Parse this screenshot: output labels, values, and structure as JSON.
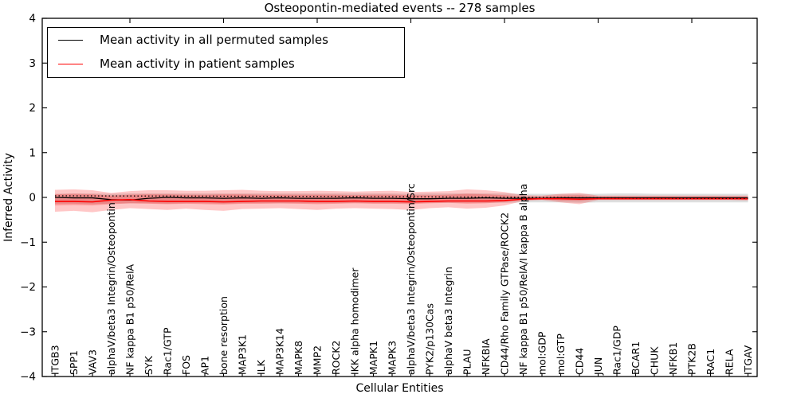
{
  "chart_data": {
    "type": "line",
    "title": "Osteopontin-mediated events -- 278 samples",
    "xlabel": "Cellular Entities",
    "ylabel": "Inferred Activity",
    "ylim": [
      -4,
      4
    ],
    "ytick_labels": [
      "4",
      "3",
      "2",
      "1",
      "0",
      "−1",
      "−2",
      "−3",
      "−4"
    ],
    "ytick_values": [
      4,
      3,
      2,
      1,
      0,
      -1,
      -2,
      -3,
      -4
    ],
    "grid": false,
    "categories": [
      "ITGB3",
      "SPP1",
      "VAV3",
      "alphaV/beta3 Integrin/Osteopontin",
      "NF kappa B1 p50/RelA",
      "SYK",
      "Rac1/GTP",
      "FOS",
      "AP1",
      "bone resorption",
      "MAP3K1",
      "ILK",
      "MAP3K14",
      "MAPK8",
      "MMP2",
      "ROCK2",
      "IKK alpha homodimer",
      "MAPK1",
      "MAPK3",
      "alphaV/beta3 Integrin/Osteopontin/Src",
      "PYK2/p130Cas",
      "alphaV beta3 Integrin",
      "PLAU",
      "NFKBIA",
      "CD44/Rho Family GTPase/ROCK2",
      "NF kappa B1 p50/RelA/I kappa B alpha",
      "mol:GDP",
      "mol:GTP",
      "CD44",
      "JUN",
      "Rac1/GDP",
      "BCAR1",
      "CHUK",
      "NFKB1",
      "PTK2B",
      "RAC1",
      "RELA",
      "ITGAV"
    ],
    "series": [
      {
        "name": "Mean activity in all permuted samples",
        "color": "#000000",
        "style": "solid",
        "width": 1.3,
        "values": [
          0.0,
          -0.01,
          -0.01,
          -0.05,
          -0.06,
          -0.02,
          0.0,
          -0.01,
          -0.01,
          -0.02,
          -0.01,
          -0.02,
          -0.01,
          -0.02,
          -0.02,
          -0.02,
          -0.01,
          -0.02,
          -0.02,
          -0.03,
          -0.03,
          -0.02,
          -0.02,
          -0.01,
          -0.02,
          -0.02,
          -0.02,
          -0.01,
          -0.01,
          -0.01,
          -0.01,
          -0.01,
          -0.01,
          -0.01,
          -0.01,
          -0.01,
          -0.01,
          -0.01
        ]
      },
      {
        "name": "Mean activity in patient samples",
        "color": "#ff0000",
        "style": "solid",
        "width": 1.6,
        "values": [
          -0.09,
          -0.09,
          -0.1,
          -0.06,
          -0.05,
          -0.08,
          -0.09,
          -0.09,
          -0.09,
          -0.1,
          -0.09,
          -0.08,
          -0.08,
          -0.08,
          -0.09,
          -0.09,
          -0.08,
          -0.09,
          -0.09,
          -0.1,
          -0.09,
          -0.08,
          -0.08,
          -0.08,
          -0.07,
          -0.04,
          -0.03,
          -0.03,
          -0.04,
          -0.03,
          -0.03,
          -0.03,
          -0.03,
          -0.03,
          -0.03,
          -0.03,
          -0.03,
          -0.03
        ]
      },
      {
        "name": "permuted-reference-dotted",
        "color": "#000000",
        "style": "dotted",
        "width": 1.3,
        "values": [
          0.035,
          0.035,
          0.034,
          0.033,
          0.032,
          0.031,
          0.03,
          0.029,
          0.028,
          0.027,
          0.026,
          0.025,
          0.024,
          0.023,
          0.022,
          0.021,
          0.02,
          0.018,
          0.016,
          0.014,
          0.012,
          0.01,
          0.008,
          0.006,
          0.004,
          0.002,
          0.0,
          -0.002,
          -0.005,
          -0.008,
          -0.01,
          -0.012,
          -0.014,
          -0.016,
          -0.018,
          -0.019,
          -0.02,
          -0.02
        ]
      }
    ],
    "bands": [
      {
        "name": "permuted-std-band",
        "color": "rgba(0,0,0,0.13)",
        "upper": [
          0.08,
          0.09,
          0.09,
          0.08,
          0.09,
          0.09,
          0.09,
          0.09,
          0.09,
          0.09,
          0.09,
          0.09,
          0.09,
          0.09,
          0.09,
          0.09,
          0.09,
          0.09,
          0.09,
          0.08,
          0.09,
          0.09,
          0.09,
          0.09,
          0.09,
          0.08,
          0.08,
          0.08,
          0.08,
          0.08,
          0.09,
          0.09,
          0.08,
          0.08,
          0.08,
          0.08,
          0.08,
          0.08
        ],
        "lower": [
          -0.14,
          -0.14,
          -0.15,
          -0.14,
          -0.13,
          -0.13,
          -0.14,
          -0.13,
          -0.13,
          -0.14,
          -0.13,
          -0.13,
          -0.13,
          -0.13,
          -0.13,
          -0.13,
          -0.12,
          -0.13,
          -0.13,
          -0.13,
          -0.12,
          -0.12,
          -0.12,
          -0.12,
          -0.12,
          -0.11,
          -0.11,
          -0.11,
          -0.12,
          -0.11,
          -0.11,
          -0.11,
          -0.11,
          -0.11,
          -0.11,
          -0.11,
          -0.11,
          -0.11
        ]
      },
      {
        "name": "patient-outer-band",
        "color": "rgba(255,0,0,0.22)",
        "upper": [
          0.17,
          0.18,
          0.16,
          0.1,
          0.14,
          0.16,
          0.16,
          0.15,
          0.15,
          0.16,
          0.17,
          0.15,
          0.14,
          0.14,
          0.15,
          0.14,
          0.13,
          0.14,
          0.15,
          0.12,
          0.13,
          0.14,
          0.18,
          0.16,
          0.12,
          0.05,
          0.04,
          0.08,
          0.1,
          0.04,
          0.04,
          0.04,
          0.04,
          0.04,
          0.04,
          0.04,
          0.04,
          0.04
        ],
        "lower": [
          -0.32,
          -0.3,
          -0.33,
          -0.28,
          -0.24,
          -0.26,
          -0.28,
          -0.25,
          -0.28,
          -0.3,
          -0.26,
          -0.25,
          -0.24,
          -0.26,
          -0.28,
          -0.25,
          -0.24,
          -0.25,
          -0.26,
          -0.28,
          -0.24,
          -0.22,
          -0.25,
          -0.23,
          -0.18,
          -0.08,
          -0.06,
          -0.11,
          -0.15,
          -0.06,
          -0.06,
          -0.06,
          -0.06,
          -0.06,
          -0.06,
          -0.06,
          -0.06,
          -0.07
        ]
      },
      {
        "name": "patient-inner-band",
        "color": "rgba(255,0,0,0.22)",
        "upper": [
          0.07,
          0.08,
          0.07,
          0.04,
          0.06,
          0.07,
          0.07,
          0.06,
          0.06,
          0.07,
          0.07,
          0.06,
          0.06,
          0.06,
          0.06,
          0.06,
          0.05,
          0.06,
          0.06,
          0.05,
          0.05,
          0.06,
          0.08,
          0.07,
          0.05,
          0.02,
          0.02,
          0.04,
          0.05,
          0.02,
          0.02,
          0.02,
          0.02,
          0.02,
          0.02,
          0.02,
          0.02,
          0.02
        ],
        "lower": [
          -0.18,
          -0.17,
          -0.18,
          -0.15,
          -0.13,
          -0.14,
          -0.15,
          -0.14,
          -0.15,
          -0.16,
          -0.14,
          -0.14,
          -0.13,
          -0.14,
          -0.15,
          -0.14,
          -0.13,
          -0.14,
          -0.14,
          -0.15,
          -0.13,
          -0.12,
          -0.14,
          -0.13,
          -0.1,
          -0.05,
          -0.04,
          -0.07,
          -0.08,
          -0.04,
          -0.04,
          -0.04,
          -0.04,
          -0.04,
          -0.04,
          -0.04,
          -0.04,
          -0.05
        ]
      }
    ],
    "legend": {
      "position": "upper left",
      "entries": [
        {
          "label": "Mean activity in all permuted samples",
          "color": "#000000"
        },
        {
          "label": "Mean activity in patient samples",
          "color": "#ff0000"
        }
      ]
    },
    "layout": {
      "top_tick_indices": [
        4,
        9,
        14,
        19,
        24,
        29,
        34
      ],
      "x_tick_label_rotation": 90
    }
  }
}
